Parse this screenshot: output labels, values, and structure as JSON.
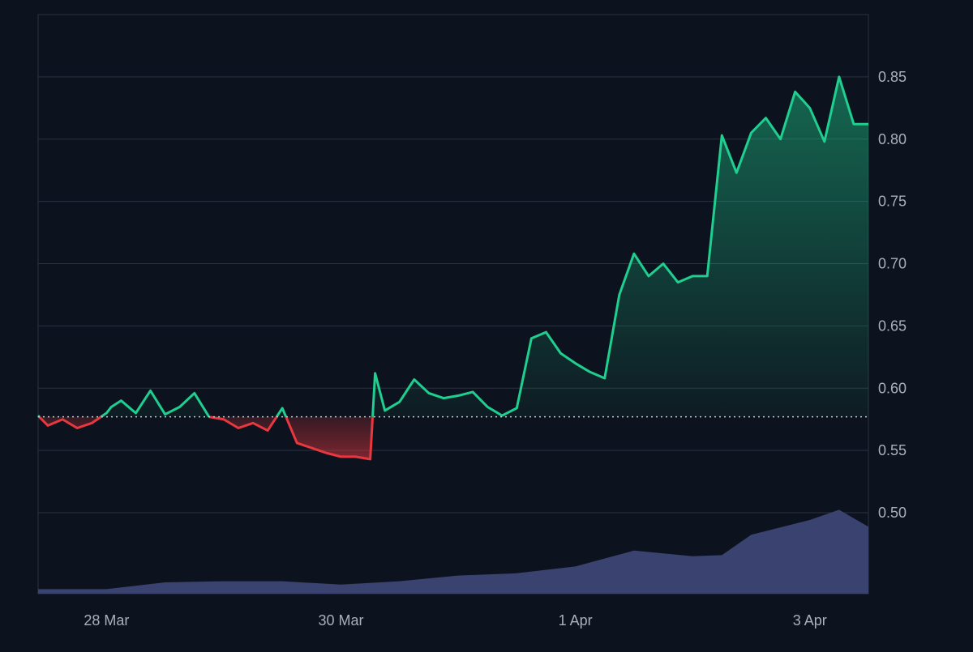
{
  "colors": {
    "background": "#0d131e",
    "grid": "#2a3340",
    "axis_text": "#a9b0bb",
    "up": "#1fcf8f",
    "down": "#e8383f",
    "volume": "#3a4270",
    "baseline": "#c7ccd4"
  },
  "chart_data": {
    "type": "line",
    "baseline": 0.577,
    "ylim": [
      0.435,
      0.9
    ],
    "y_ticks": [
      "0.85",
      "0.80",
      "0.75",
      "0.70",
      "0.65",
      "0.60",
      "0.55",
      "0.50"
    ],
    "y_tick_values": [
      0.85,
      0.8,
      0.75,
      0.7,
      0.65,
      0.6,
      0.55,
      0.5
    ],
    "x_range": [
      "2025-03-27 10:00",
      "2025-04-03 12:00"
    ],
    "x_ticks": [
      "28 Mar",
      "30 Mar",
      "1 Apr",
      "3 Apr"
    ],
    "x_tick_dates": [
      "2025-03-28",
      "2025-03-30",
      "2025-04-01",
      "2025-04-03"
    ],
    "series": [
      {
        "x": [
          "2025-03-27 10:00",
          "2025-03-27 12:00",
          "2025-03-27 15:00",
          "2025-03-27 18:00",
          "2025-03-27 21:00",
          "2025-03-28 00:00",
          "2025-03-28 01:00",
          "2025-03-28 03:00",
          "2025-03-28 06:00",
          "2025-03-28 09:00",
          "2025-03-28 12:00",
          "2025-03-28 15:00",
          "2025-03-28 18:00",
          "2025-03-28 21:00",
          "2025-03-29 00:00",
          "2025-03-29 03:00",
          "2025-03-29 06:00",
          "2025-03-29 09:00",
          "2025-03-29 12:00",
          "2025-03-29 15:00",
          "2025-03-29 18:00",
          "2025-03-29 21:00",
          "2025-03-30 00:00",
          "2025-03-30 03:00",
          "2025-03-30 06:00",
          "2025-03-30 07:00",
          "2025-03-30 09:00",
          "2025-03-30 12:00",
          "2025-03-30 15:00",
          "2025-03-30 18:00",
          "2025-03-30 21:00",
          "2025-03-31 00:00",
          "2025-03-31 03:00",
          "2025-03-31 06:00",
          "2025-03-31 09:00",
          "2025-03-31 12:00",
          "2025-03-31 15:00",
          "2025-03-31 18:00",
          "2025-03-31 21:00",
          "2025-04-01 00:00",
          "2025-04-01 03:00",
          "2025-04-01 06:00",
          "2025-04-01 09:00",
          "2025-04-01 12:00",
          "2025-04-01 15:00",
          "2025-04-01 18:00",
          "2025-04-01 21:00",
          "2025-04-02 00:00",
          "2025-04-02 03:00",
          "2025-04-02 06:00",
          "2025-04-02 09:00",
          "2025-04-02 12:00",
          "2025-04-02 15:00",
          "2025-04-02 18:00",
          "2025-04-02 21:00",
          "2025-04-03 00:00",
          "2025-04-03 03:00",
          "2025-04-03 06:00",
          "2025-04-03 09:00",
          "2025-04-03 12:00"
        ],
        "values": [
          0.578,
          0.57,
          0.575,
          0.568,
          0.572,
          0.58,
          0.585,
          0.59,
          0.58,
          0.598,
          0.579,
          0.585,
          0.596,
          0.577,
          0.575,
          0.568,
          0.572,
          0.566,
          0.584,
          0.556,
          0.552,
          0.548,
          0.545,
          0.545,
          0.543,
          0.612,
          0.582,
          0.589,
          0.607,
          0.596,
          0.592,
          0.594,
          0.597,
          0.585,
          0.578,
          0.584,
          0.64,
          0.645,
          0.628,
          0.62,
          0.613,
          0.608,
          0.675,
          0.708,
          0.69,
          0.7,
          0.685,
          0.69,
          0.69,
          0.803,
          0.773,
          0.805,
          0.817,
          0.8,
          0.838,
          0.825,
          0.798,
          0.85,
          0.812,
          0.812
        ]
      }
    ],
    "volume": {
      "x": [
        "2025-03-27 10:00",
        "2025-03-28 00:00",
        "2025-03-28 12:00",
        "2025-03-29 00:00",
        "2025-03-29 12:00",
        "2025-03-30 00:00",
        "2025-03-30 12:00",
        "2025-03-31 00:00",
        "2025-03-31 12:00",
        "2025-04-01 00:00",
        "2025-04-01 12:00",
        "2025-04-02 00:00",
        "2025-04-02 06:00",
        "2025-04-02 12:00",
        "2025-04-03 00:00",
        "2025-04-03 06:00",
        "2025-04-03 12:00"
      ],
      "values": [
        4,
        4,
        10,
        11,
        11,
        8,
        11,
        16,
        18,
        24,
        38,
        33,
        34,
        52,
        65,
        74,
        59
      ]
    }
  }
}
